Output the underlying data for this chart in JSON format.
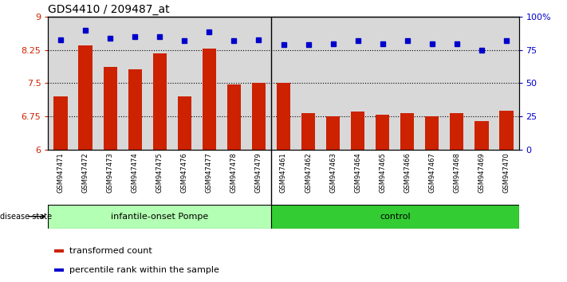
{
  "title": "GDS4410 / 209487_at",
  "categories": [
    "GSM947471",
    "GSM947472",
    "GSM947473",
    "GSM947474",
    "GSM947475",
    "GSM947476",
    "GSM947477",
    "GSM947478",
    "GSM947479",
    "GSM947461",
    "GSM947462",
    "GSM947463",
    "GSM947464",
    "GSM947465",
    "GSM947466",
    "GSM947467",
    "GSM947468",
    "GSM947469",
    "GSM947470"
  ],
  "bar_values": [
    7.2,
    8.35,
    7.87,
    7.82,
    8.18,
    7.2,
    8.28,
    7.48,
    7.5,
    7.5,
    6.82,
    6.75,
    6.86,
    6.78,
    6.82,
    6.75,
    6.82,
    6.65,
    6.87
  ],
  "percentile_values": [
    83,
    90,
    84,
    85,
    85,
    82,
    89,
    82,
    83,
    79,
    79,
    80,
    82,
    80,
    82,
    80,
    80,
    75,
    82
  ],
  "bar_color": "#cc2200",
  "dot_color": "#0000cc",
  "ylim_left": [
    6,
    9
  ],
  "ylim_right": [
    0,
    100
  ],
  "yticks_left": [
    6,
    6.75,
    7.5,
    8.25,
    9
  ],
  "yticks_right": [
    0,
    25,
    50,
    75,
    100
  ],
  "ytick_labels_left": [
    "6",
    "6.75",
    "7.5",
    "8.25",
    "9"
  ],
  "ytick_labels_right": [
    "0",
    "25",
    "50",
    "75",
    "100%"
  ],
  "hlines": [
    6.75,
    7.5,
    8.25
  ],
  "group1_label": "infantile-onset Pompe",
  "group2_label": "control",
  "group1_count": 9,
  "group2_count": 10,
  "group1_color": "#b3ffb3",
  "group2_color": "#33cc33",
  "disease_state_label": "disease state",
  "legend_bar_label": "transformed count",
  "legend_dot_label": "percentile rank within the sample",
  "axes_bg": "#d8d8d8",
  "title_fontsize": 10,
  "bar_label_fontsize": 6,
  "ylabel_left_color": "#cc2200",
  "ylabel_right_color": "#0000cc"
}
